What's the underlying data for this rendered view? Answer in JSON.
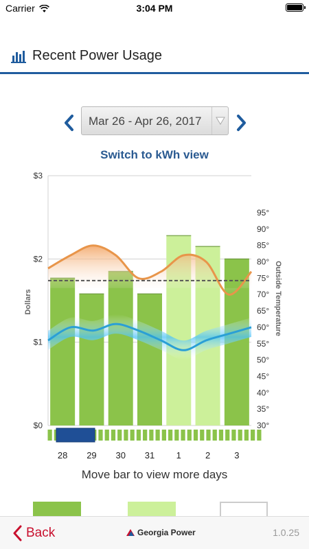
{
  "status_bar": {
    "carrier": "Carrier",
    "time": "3:04 PM"
  },
  "header": {
    "title": "Recent Power Usage",
    "icon": "bar-chart-icon"
  },
  "date_range": {
    "selected": "Mar 26 - Apr 26, 2017"
  },
  "switch_view_label": "Switch to kWh view",
  "chart_data": {
    "type": "bar",
    "categories": [
      "28",
      "29",
      "30",
      "31",
      "1",
      "2",
      "3"
    ],
    "values": [
      1.77,
      1.58,
      1.85,
      1.58,
      2.28,
      2.15,
      2.0
    ],
    "bar_colors": [
      "#8bc34a",
      "#8bc34a",
      "#8bc34a",
      "#8bc34a",
      "#ccf09a",
      "#ccf09a",
      "#8bc34a"
    ],
    "ylabel": "Dollars",
    "ylim": [
      0,
      3
    ],
    "y_ticks": [
      "$0",
      "$1",
      "$2",
      "$3"
    ],
    "average_dollars": 1.74,
    "right_axis": {
      "label": "Outside Temperature",
      "ylim": [
        30,
        95
      ],
      "ticks": [
        "30°",
        "35°",
        "40°",
        "45°",
        "50°",
        "55°",
        "60°",
        "65°",
        "70°",
        "75°",
        "80°",
        "85°",
        "90°",
        "95°"
      ]
    },
    "temperature_series": [
      {
        "name": "high",
        "color": "#e8954a",
        "values": [
          78,
          82,
          85,
          82,
          75,
          77,
          82,
          80,
          70,
          77
        ]
      },
      {
        "name": "low",
        "color": "#2a9fd6",
        "values": [
          56,
          60,
          59,
          61,
          59,
          56,
          53,
          56,
          58,
          60
        ]
      }
    ],
    "grid": true
  },
  "timeline": {
    "tick_count": 34
  },
  "move_bar_label": "Move bar to view more days",
  "footer": {
    "back_label": "Back",
    "brand_label": "Georgia Power",
    "version": "1.0.25"
  },
  "colors": {
    "accent_blue": "#1f5c9e",
    "link_blue": "#2a5a91",
    "back_red": "#c8102e",
    "slider_blue": "#1f4f96"
  }
}
